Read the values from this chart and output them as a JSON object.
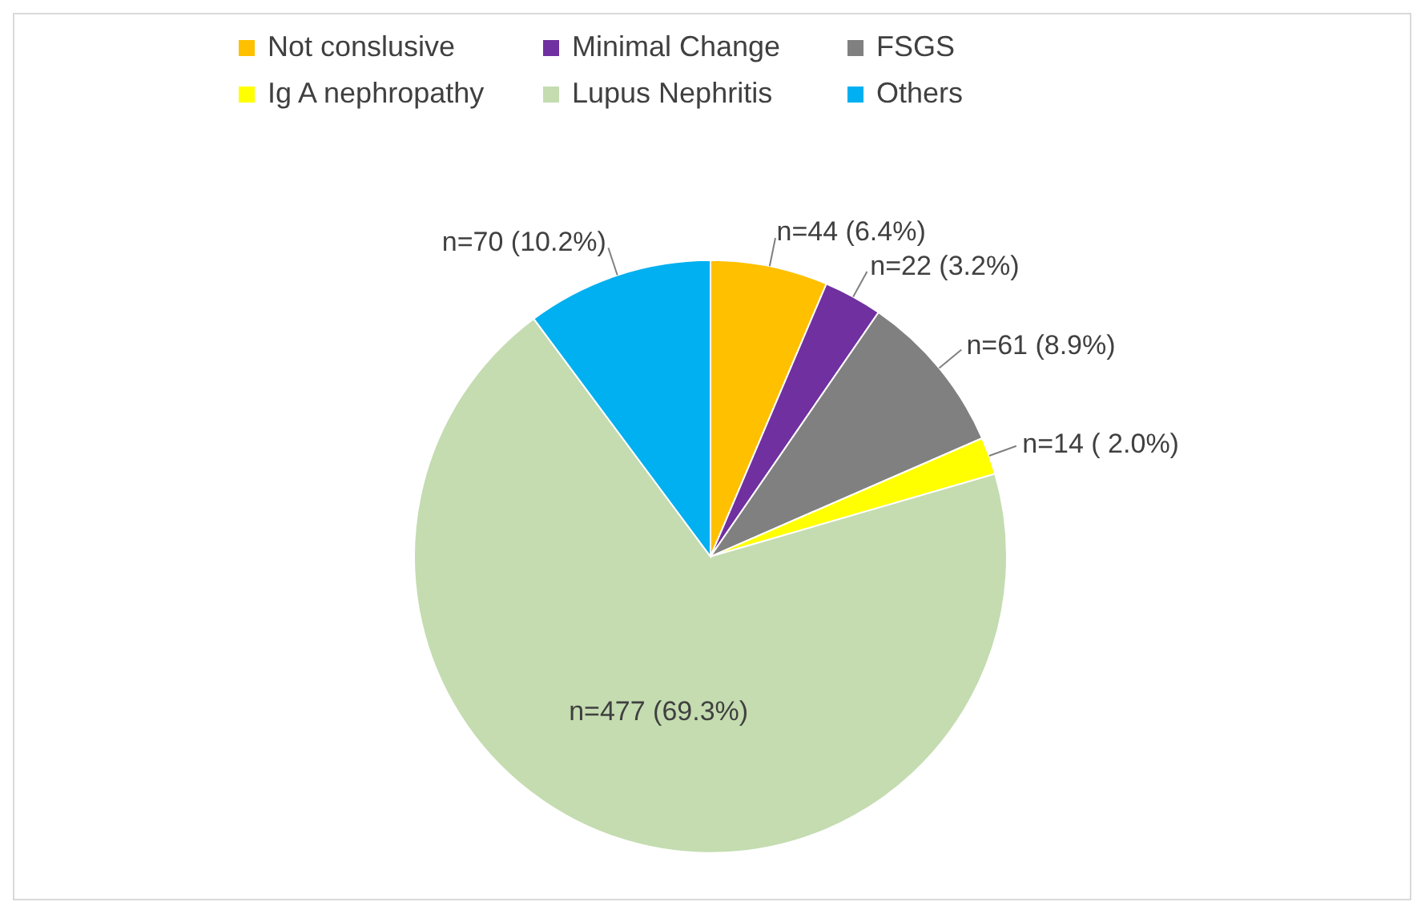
{
  "chart_data": {
    "type": "pie",
    "categories": [
      "Not conslusive",
      "Minimal Change",
      "FSGS",
      "Ig A nephropathy",
      "Lupus Nephritis",
      "Others"
    ],
    "values": [
      44,
      22,
      61,
      14,
      477,
      70
    ],
    "colors": [
      "#ffc000",
      "#7030a0",
      "#808080",
      "#ffff00",
      "#c4dcb0",
      "#00b0f0"
    ],
    "value_labels": [
      "n=44 (6.4%)",
      "n=22 (3.2%)",
      "n=61 (8.9%)",
      "n=14 ( 2.0%)",
      "n=477 (69.3%)",
      "n=70 (10.2%)"
    ],
    "legend": "top"
  }
}
